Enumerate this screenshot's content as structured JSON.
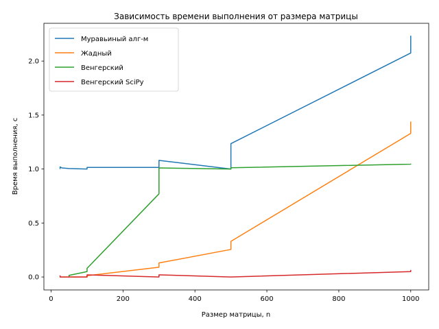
{
  "chart_data": {
    "type": "line",
    "title": "Зависимость времени выполнения от размера матрицы",
    "xlabel": "Размер матрицы, n",
    "ylabel": "Время выполнения, с",
    "xlim": [
      -20,
      1050
    ],
    "ylim": [
      -0.12,
      2.35
    ],
    "x_ticks": [
      0,
      200,
      400,
      600,
      800,
      1000
    ],
    "y_ticks": [
      0.0,
      0.5,
      1.0,
      1.5,
      2.0
    ],
    "x_tick_labels": [
      "0",
      "200",
      "400",
      "600",
      "800",
      "1000"
    ],
    "y_tick_labels": [
      "0.0",
      "0.5",
      "1.0",
      "1.5",
      "2.0"
    ],
    "grid": false,
    "legend_position": "top-left",
    "series": [
      {
        "name": "Муравьиный алг-м",
        "color": "#1f77b4",
        "points": [
          [
            25,
            1.0
          ],
          [
            25,
            1.02
          ],
          [
            30,
            1.01
          ],
          [
            50,
            1.005
          ],
          [
            100,
            1.0
          ],
          [
            100,
            1.015
          ],
          [
            300,
            1.015
          ],
          [
            300,
            1.08
          ],
          [
            500,
            1.0
          ],
          [
            500,
            1.235
          ],
          [
            1000,
            2.075
          ],
          [
            1000,
            2.235
          ]
        ]
      },
      {
        "name": "Жадный",
        "color": "#ff7f0e",
        "points": [
          [
            25,
            0.0
          ],
          [
            100,
            0.0
          ],
          [
            100,
            0.012
          ],
          [
            300,
            0.09
          ],
          [
            300,
            0.13
          ],
          [
            500,
            0.255
          ],
          [
            500,
            0.33
          ],
          [
            1000,
            1.33
          ],
          [
            1000,
            1.44
          ]
        ]
      },
      {
        "name": "Венгерский",
        "color": "#2ca02c",
        "points": [
          [
            50,
            0.0
          ],
          [
            50,
            0.015
          ],
          [
            100,
            0.05
          ],
          [
            100,
            0.08
          ],
          [
            300,
            0.77
          ],
          [
            300,
            1.01
          ],
          [
            500,
            1.0
          ],
          [
            500,
            1.012
          ],
          [
            1000,
            1.045
          ],
          [
            1000,
            1.05
          ]
        ]
      },
      {
        "name": "Венгерский SciPy",
        "color": "#d62728",
        "points": [
          [
            25,
            0.015
          ],
          [
            25,
            0.0
          ],
          [
            100,
            0.0
          ],
          [
            100,
            0.02
          ],
          [
            300,
            0.0
          ],
          [
            300,
            0.02
          ],
          [
            500,
            0.0
          ],
          [
            1000,
            0.05
          ],
          [
            1000,
            0.065
          ]
        ]
      }
    ]
  }
}
